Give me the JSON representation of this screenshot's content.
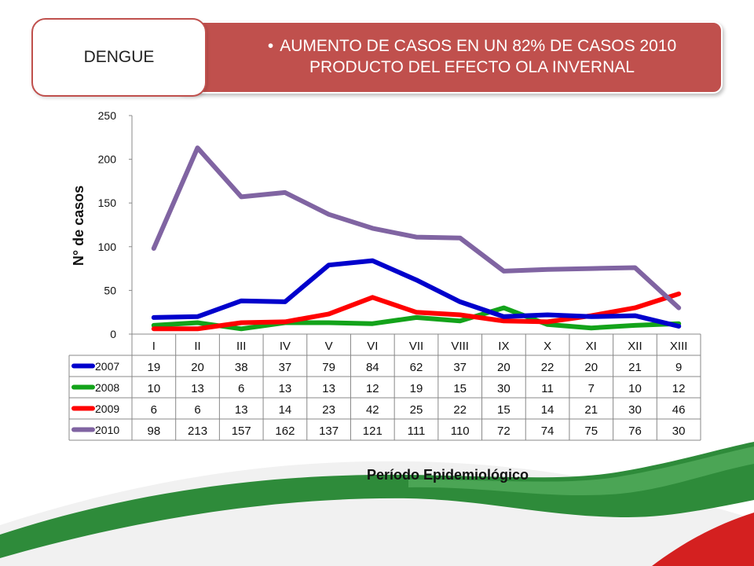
{
  "header": {
    "tag": "DENGUE",
    "bullet_line1": "AUMENTO DE CASOS EN UN 82% DE CASOS 2010",
    "bullet_line2": "PRODUCTO DEL EFECTO OLA INVERNAL"
  },
  "colors": {
    "header_bg": "#c0504d",
    "s2007": "#0000cc",
    "s2008": "#13a31a",
    "s2009": "#ff0000",
    "s2010": "#8064a2"
  },
  "chart_data": {
    "type": "line",
    "ylabel": "N° de casos",
    "xlabel": "Período Epidemiológico",
    "ylim": [
      0,
      250
    ],
    "yticks": [
      0,
      50,
      100,
      150,
      200,
      250
    ],
    "grid": false,
    "legend": "table-left",
    "categories": [
      "I",
      "II",
      "III",
      "IV",
      "V",
      "VI",
      "VII",
      "VIII",
      "IX",
      "X",
      "XI",
      "XII",
      "XIII"
    ],
    "series": [
      {
        "name": "2007",
        "values": [
          19,
          20,
          38,
          37,
          79,
          84,
          62,
          37,
          20,
          22,
          20,
          21,
          9
        ]
      },
      {
        "name": "2008",
        "values": [
          10,
          13,
          6,
          13,
          13,
          12,
          19,
          15,
          30,
          11,
          7,
          10,
          12
        ]
      },
      {
        "name": "2009",
        "values": [
          6,
          6,
          13,
          14,
          23,
          42,
          25,
          22,
          15,
          14,
          21,
          30,
          46
        ]
      },
      {
        "name": "2010",
        "values": [
          98,
          213,
          157,
          162,
          137,
          121,
          111,
          110,
          72,
          74,
          75,
          76,
          30
        ]
      }
    ]
  }
}
